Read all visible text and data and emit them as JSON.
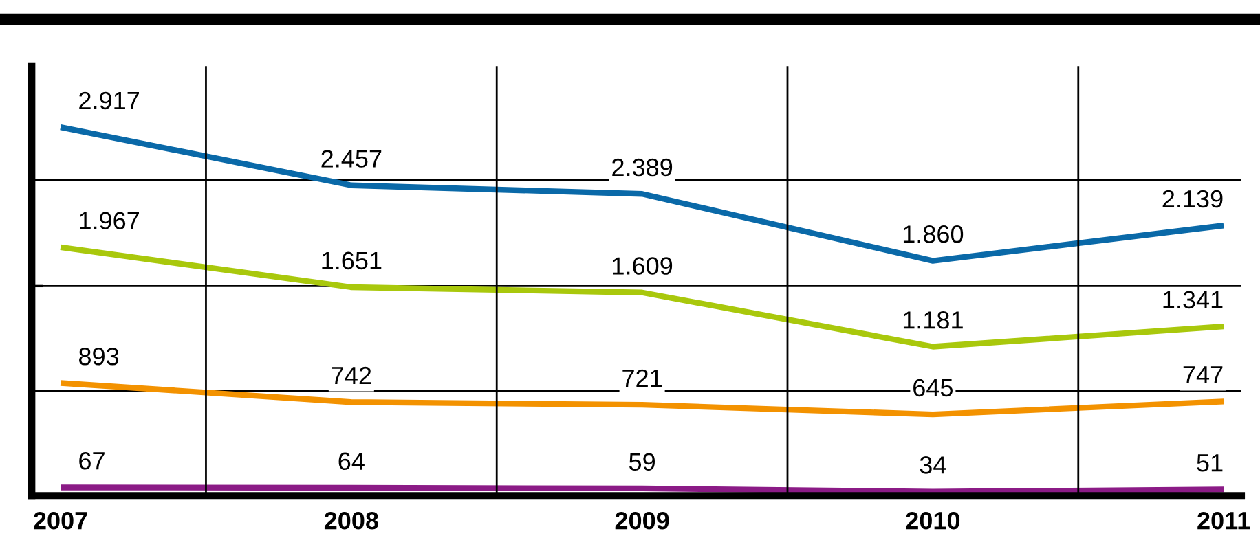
{
  "chart_data": {
    "type": "line",
    "categories": [
      "2007",
      "2008",
      "2009",
      "2010",
      "2011"
    ],
    "series": [
      {
        "color": "#0a69a8",
        "values": [
          2917,
          2457,
          2389,
          1860,
          2139
        ],
        "value_labels": [
          "2.917",
          "2.457",
          "2.389",
          "1.860",
          "2.139"
        ]
      },
      {
        "color": "#a9c80c",
        "values": [
          1967,
          1651,
          1609,
          1181,
          1341
        ],
        "value_labels": [
          "1.967",
          "1.651",
          "1.609",
          "1.181",
          "1.341"
        ]
      },
      {
        "color": "#f39200",
        "values": [
          893,
          742,
          721,
          645,
          747
        ],
        "value_labels": [
          "893",
          "742",
          "721",
          "645",
          "747"
        ]
      },
      {
        "color": "#8b1b86",
        "values": [
          67,
          64,
          59,
          34,
          51
        ],
        "value_labels": [
          "67",
          "64",
          "59",
          "34",
          "51"
        ]
      }
    ],
    "ylim": [
      0,
      3400
    ],
    "yticks": [
      {
        "value": 830,
        "label": null
      },
      {
        "value": 1660,
        "label": null
      },
      {
        "value": 2500,
        "label": null
      }
    ],
    "grid": true,
    "legend": false,
    "marker": "none",
    "line_style": "solid"
  }
}
